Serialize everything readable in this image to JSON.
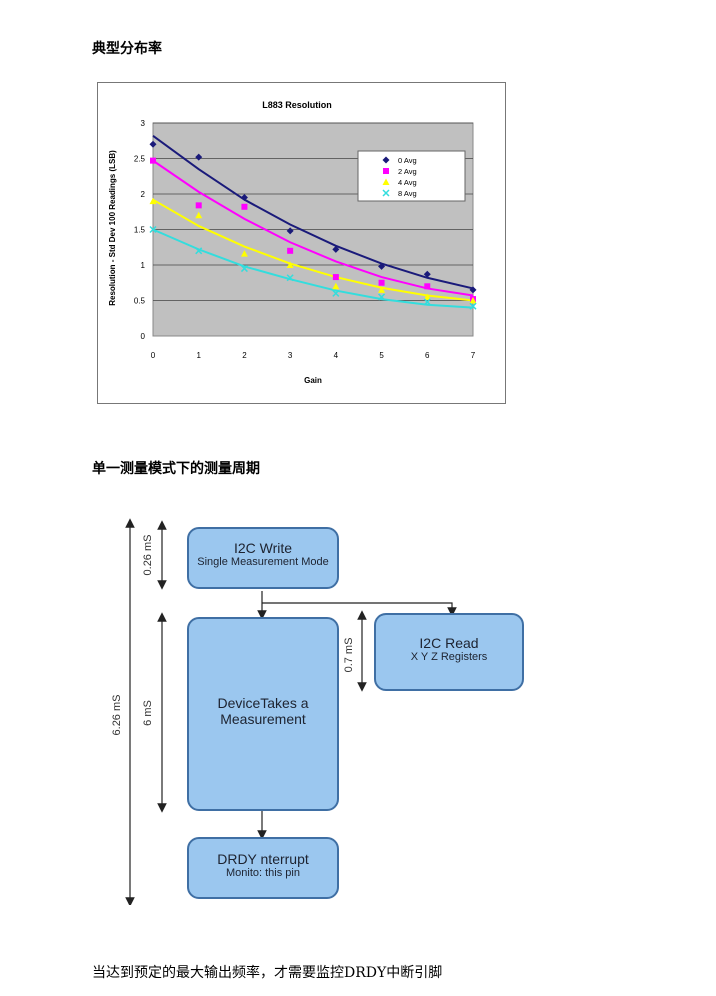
{
  "headings": {
    "typical_distribution": "典型分布率",
    "single_measurement_cycle": "单一测量模式下的测量周期"
  },
  "chart_data": {
    "type": "scatter",
    "title": "L883 Resolution",
    "xlabel": "Gain",
    "ylabel": "Resolution - Std Dev 100 Readings (LSB)",
    "xlim": [
      0,
      7
    ],
    "ylim": [
      0,
      3
    ],
    "x_ticks": [
      "0",
      "1",
      "2",
      "3",
      "4",
      "5",
      "6",
      "7"
    ],
    "y_ticks": [
      "0",
      "0.5",
      "1",
      "1.5",
      "2",
      "2.5",
      "3"
    ],
    "grid": true,
    "legend_position": "top-right",
    "x": [
      0,
      1,
      2,
      3,
      4,
      5,
      6,
      7
    ],
    "series": [
      {
        "name": "0 Avg",
        "color": "#1a1a7a",
        "marker": "diamond",
        "values": [
          2.7,
          2.52,
          1.95,
          1.48,
          1.22,
          0.98,
          0.87,
          0.65
        ],
        "fit": [
          2.82,
          2.35,
          1.92,
          1.57,
          1.27,
          1.02,
          0.82,
          0.67
        ]
      },
      {
        "name": "2 Avg",
        "color": "#ff00ff",
        "marker": "square",
        "values": [
          2.47,
          1.84,
          1.82,
          1.2,
          0.83,
          0.75,
          0.7,
          0.52
        ],
        "fit": [
          2.47,
          2.03,
          1.65,
          1.32,
          1.05,
          0.83,
          0.67,
          0.57
        ]
      },
      {
        "name": "4 Avg",
        "color": "#ffff00",
        "marker": "triangle",
        "values": [
          1.9,
          1.7,
          1.16,
          1.0,
          0.7,
          0.65,
          0.55,
          0.5
        ],
        "fit": [
          1.92,
          1.55,
          1.26,
          1.02,
          0.83,
          0.68,
          0.57,
          0.5
        ]
      },
      {
        "name": "8 Avg",
        "color": "#33dddd",
        "marker": "x",
        "values": [
          1.5,
          1.2,
          0.95,
          0.82,
          0.6,
          0.55,
          0.48,
          0.42
        ],
        "fit": [
          1.5,
          1.22,
          0.98,
          0.8,
          0.64,
          0.52,
          0.44,
          0.4
        ]
      }
    ]
  },
  "diagram": {
    "boxes": {
      "i2c_write": {
        "line1": "I2C Write",
        "line2": "Single Measurement Mode"
      },
      "i2c_read": {
        "line1": "I2C Read",
        "line2": "X Y Z Registers"
      },
      "device": {
        "line1": "DeviceTakes a",
        "line2": "Measurement"
      },
      "drdy": {
        "line1": "DRDY nterrupt",
        "line2": "Monito: this pin"
      }
    },
    "labels": {
      "t_write": "0.26 mS",
      "t_measure": "6 mS",
      "t_total": "6.26 mS",
      "t_read": "0.7 mS"
    },
    "colors": {
      "box_fill": "#9bc7ef",
      "box_border": "#3f6fa4"
    }
  },
  "footer_text": "当达到预定的最大输出频率，才需要监控DRDY中断引脚"
}
